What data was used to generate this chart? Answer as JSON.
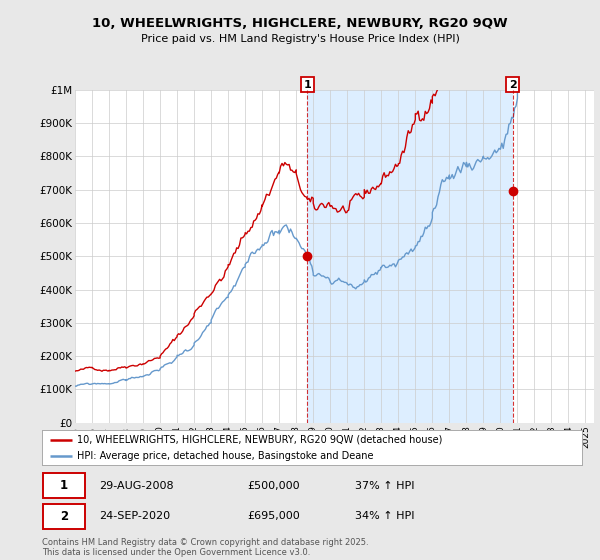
{
  "title_line1": "10, WHEELWRIGHTS, HIGHCLERE, NEWBURY, RG20 9QW",
  "title_line2": "Price paid vs. HM Land Registry's House Price Index (HPI)",
  "bg_color": "#e8e8e8",
  "plot_bg_color": "#ffffff",
  "plot_shade_color": "#ddeeff",
  "red_color": "#cc0000",
  "blue_color": "#6699cc",
  "vline_color": "#cc0000",
  "ylim": [
    0,
    1000000
  ],
  "yticks": [
    0,
    100000,
    200000,
    300000,
    400000,
    500000,
    600000,
    700000,
    800000,
    900000,
    1000000
  ],
  "ytick_labels": [
    "£0",
    "£100K",
    "£200K",
    "£300K",
    "£400K",
    "£500K",
    "£600K",
    "£700K",
    "£800K",
    "£900K",
    "£1M"
  ],
  "xlim_start": 1995.0,
  "xlim_end": 2025.5,
  "transaction1_x": 2008.66,
  "transaction1_y": 500000,
  "transaction2_x": 2020.73,
  "transaction2_y": 695000,
  "transaction1_label": "1",
  "transaction2_label": "2",
  "transaction1_date": "29-AUG-2008",
  "transaction1_price": "£500,000",
  "transaction1_hpi": "37% ↑ HPI",
  "transaction2_date": "24-SEP-2020",
  "transaction2_price": "£695,000",
  "transaction2_hpi": "34% ↑ HPI",
  "legend_line1": "10, WHEELWRIGHTS, HIGHCLERE, NEWBURY, RG20 9QW (detached house)",
  "legend_line2": "HPI: Average price, detached house, Basingstoke and Deane",
  "footer": "Contains HM Land Registry data © Crown copyright and database right 2025.\nThis data is licensed under the Open Government Licence v3.0."
}
